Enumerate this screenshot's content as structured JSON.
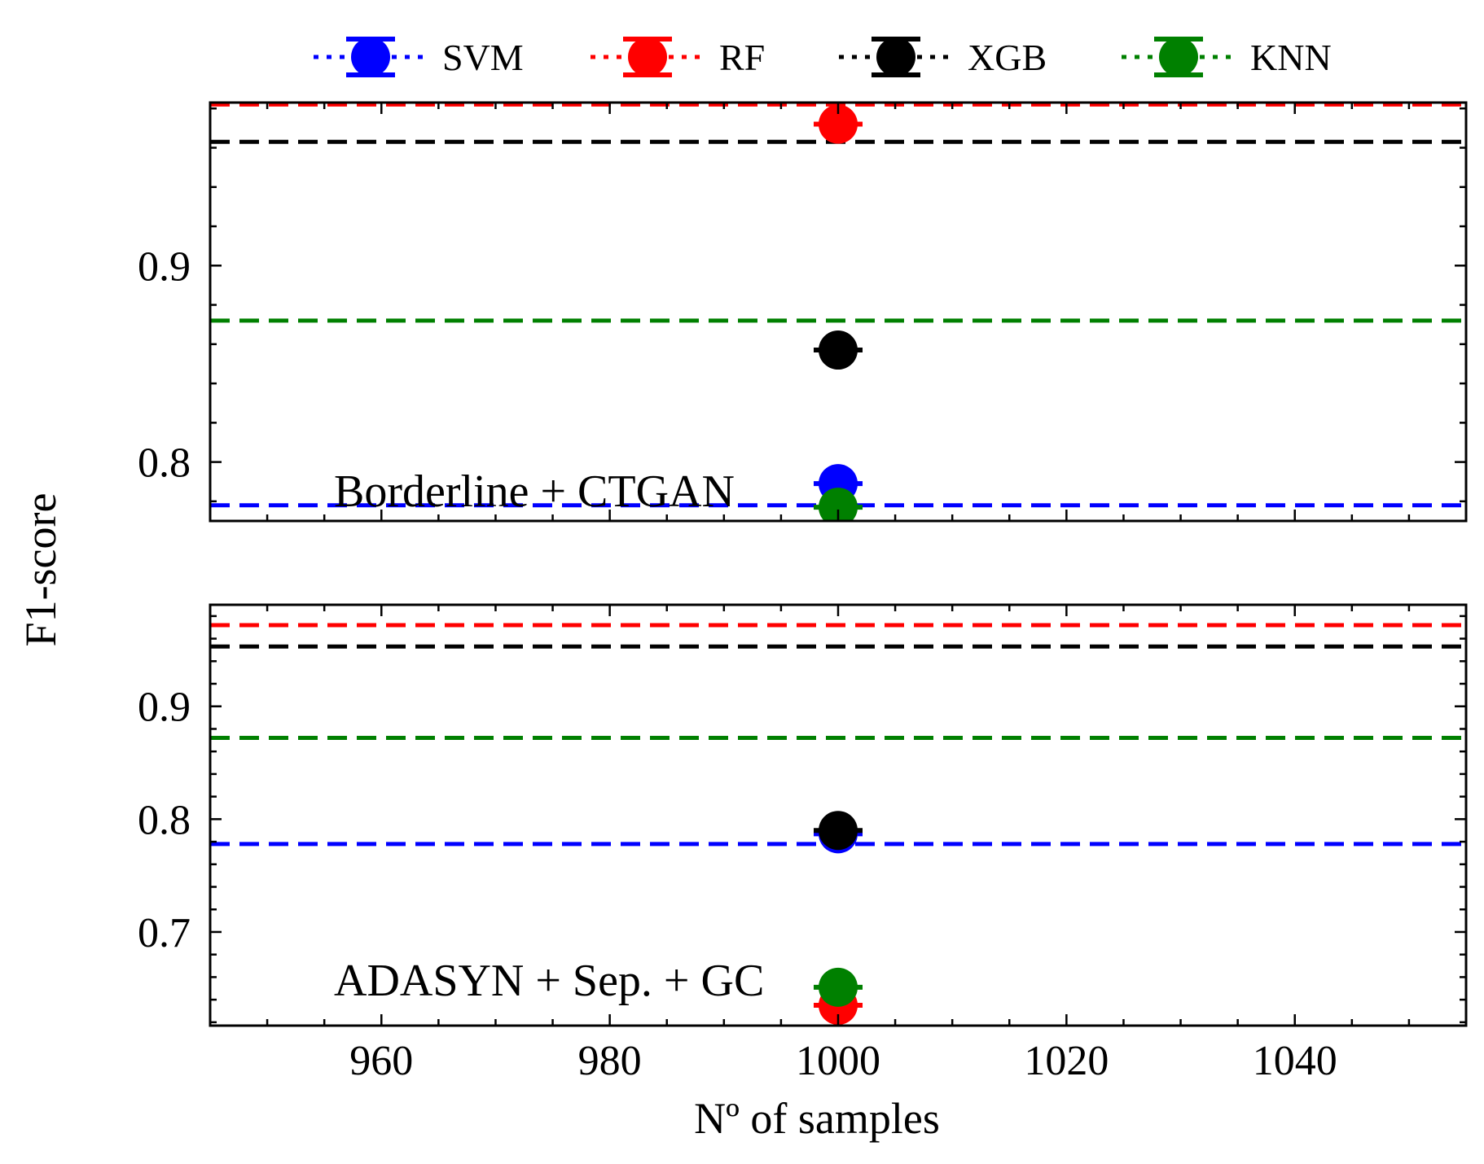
{
  "legend": {
    "entries": [
      {
        "name": "SVM",
        "color": "#0000ff"
      },
      {
        "name": "RF",
        "color": "#ff0000"
      },
      {
        "name": "XGB",
        "color": "#000000"
      },
      {
        "name": "KNN",
        "color": "#008000"
      }
    ],
    "placement": "top-center, outside plots"
  },
  "ylabel": "F1-score",
  "xlabel": "Nº of samples",
  "chart_data": [
    {
      "type": "scatter",
      "title": "",
      "annotation": "Borderline + CTGAN",
      "x_ticks": [
        960,
        980,
        1000,
        1020,
        1040
      ],
      "xlim": [
        945,
        1055
      ],
      "ylim": [
        0.77,
        0.983
      ],
      "y_ticks": [
        0.8,
        0.9
      ],
      "y_tick_labels": [
        "0.8",
        "0.9"
      ],
      "grid": false,
      "series": [
        {
          "name": "SVM",
          "color": "#0000ff",
          "baseline": 0.778,
          "points": [
            {
              "x": 1000,
              "y": 0.789
            }
          ]
        },
        {
          "name": "RF",
          "color": "#ff0000",
          "baseline": 0.982,
          "points": [
            {
              "x": 1000,
              "y": 0.972
            }
          ]
        },
        {
          "name": "XGB",
          "color": "#000000",
          "baseline": 0.963,
          "points": [
            {
              "x": 1000,
              "y": 0.857
            }
          ]
        },
        {
          "name": "KNN",
          "color": "#008000",
          "baseline": 0.872,
          "points": [
            {
              "x": 1000,
              "y": 0.777
            }
          ]
        }
      ]
    },
    {
      "type": "scatter",
      "title": "",
      "annotation": "ADASYN + Sep. + GC",
      "x_ticks": [
        960,
        980,
        1000,
        1020,
        1040
      ],
      "x_tick_labels": [
        "960",
        "980",
        "1000",
        "1020",
        "1040"
      ],
      "xlim": [
        945,
        1055
      ],
      "ylim": [
        0.617,
        0.99
      ],
      "y_ticks": [
        0.7,
        0.8,
        0.9
      ],
      "y_tick_labels": [
        "0.7",
        "0.8",
        "0.9"
      ],
      "grid": false,
      "series": [
        {
          "name": "SVM",
          "color": "#0000ff",
          "baseline": 0.778,
          "points": [
            {
              "x": 1000,
              "y": 0.787
            }
          ]
        },
        {
          "name": "RF",
          "color": "#ff0000",
          "baseline": 0.972,
          "points": [
            {
              "x": 1000,
              "y": 0.635
            }
          ]
        },
        {
          "name": "XGB",
          "color": "#000000",
          "baseline": 0.953,
          "points": [
            {
              "x": 1000,
              "y": 0.79
            }
          ]
        },
        {
          "name": "KNN",
          "color": "#008000",
          "baseline": 0.872,
          "points": [
            {
              "x": 1000,
              "y": 0.651
            }
          ]
        }
      ]
    }
  ]
}
